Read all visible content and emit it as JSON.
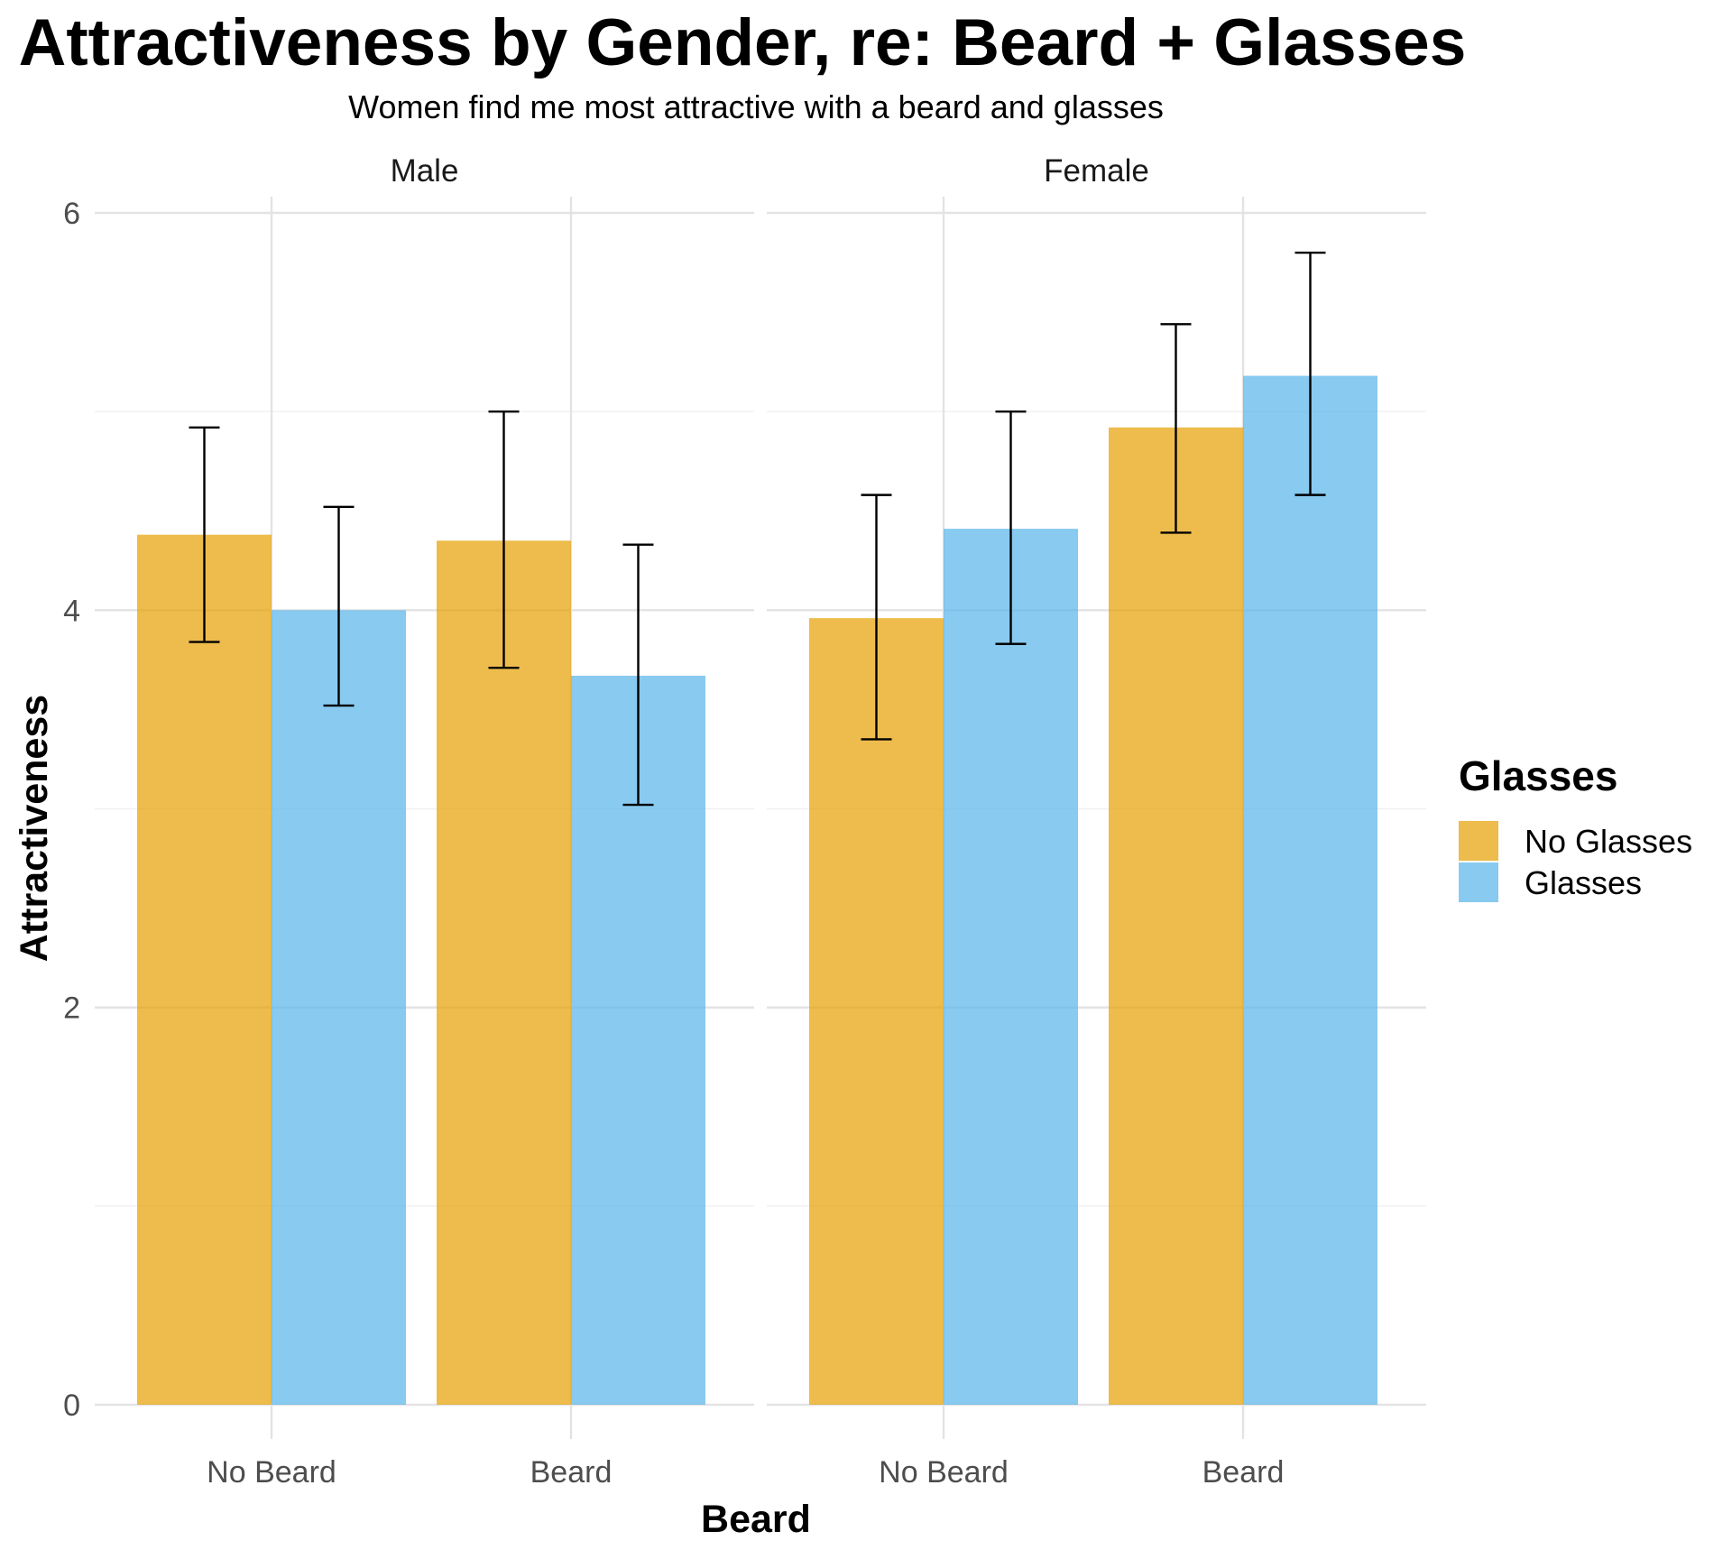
{
  "chart_data": {
    "type": "bar",
    "title": "Attractiveness by Gender, re: Beard + Glasses",
    "subtitle": "Women find me most attractive with a beard and glasses",
    "xlabel": "Beard",
    "ylabel": "Attractiveness",
    "ylim": [
      0,
      6
    ],
    "yticks": [
      0,
      2,
      4,
      6
    ],
    "grid": true,
    "legend": {
      "title": "Glasses",
      "position": "right"
    },
    "categories": [
      "No Beard",
      "Beard"
    ],
    "series_colors": {
      "No Glasses": "#E69F00",
      "Glasses": "#56B4E9"
    },
    "facets": [
      {
        "name": "Male",
        "series": [
          {
            "name": "No Glasses",
            "values": [
              4.38,
              4.35
            ],
            "error_low": [
              3.84,
              3.71
            ],
            "error_high": [
              4.92,
              5.0
            ]
          },
          {
            "name": "Glasses",
            "values": [
              4.0,
              3.67
            ],
            "error_low": [
              3.52,
              3.02
            ],
            "error_high": [
              4.52,
              4.33
            ]
          }
        ]
      },
      {
        "name": "Female",
        "series": [
          {
            "name": "No Glasses",
            "values": [
              3.96,
              4.92
            ],
            "error_low": [
              3.35,
              4.39
            ],
            "error_high": [
              4.58,
              5.44
            ]
          },
          {
            "name": "Glasses",
            "values": [
              4.41,
              5.18
            ],
            "error_low": [
              3.83,
              4.58
            ],
            "error_high": [
              5.0,
              5.8
            ]
          }
        ]
      }
    ]
  }
}
